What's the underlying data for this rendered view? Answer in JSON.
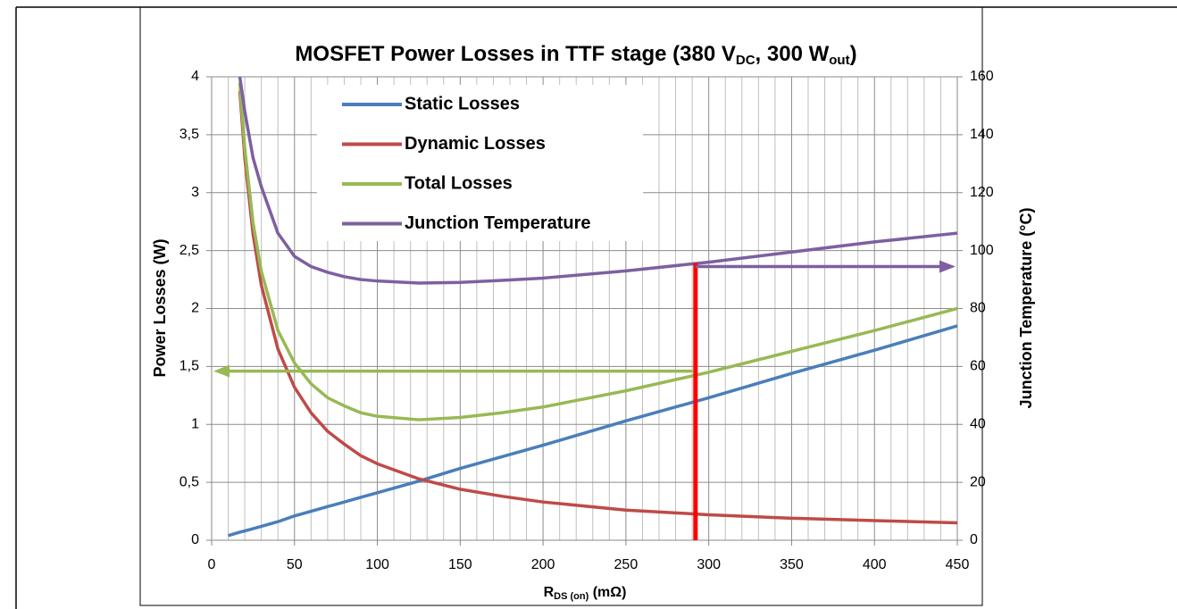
{
  "chart_data": {
    "type": "line",
    "title": [
      "MOSFET Power Losses in TTF stage (380 V",
      "DC",
      ", 300 W",
      "out",
      ")"
    ],
    "x_label": [
      "R",
      "DS (on)",
      " (mΩ)"
    ],
    "y_label": "Power Losses (W)",
    "y2_label": "Junction Temperature (°C)",
    "x": [
      10,
      17,
      20,
      25,
      30,
      40,
      50,
      60,
      70,
      80,
      90,
      100,
      125,
      150,
      175,
      200,
      250,
      300,
      350,
      400,
      450
    ],
    "series": [
      {
        "name": "Static Losses",
        "color": "#4a7ebb",
        "values": [
          0.04,
          0.07,
          0.08,
          0.1,
          0.12,
          0.16,
          0.21,
          0.25,
          0.29,
          0.33,
          0.37,
          0.41,
          0.51,
          0.62,
          0.72,
          0.82,
          1.03,
          1.23,
          1.44,
          1.64,
          1.85
        ]
      },
      {
        "name": "Dynamic Losses",
        "color": "#be4b48",
        "values": [
          null,
          3.88,
          3.3,
          2.64,
          2.2,
          1.65,
          1.32,
          1.1,
          0.94,
          0.83,
          0.73,
          0.66,
          0.53,
          0.44,
          0.38,
          0.33,
          0.26,
          0.22,
          0.19,
          0.17,
          0.15
        ]
      },
      {
        "name": "Total Losses",
        "color": "#98b954",
        "values": [
          null,
          3.95,
          3.38,
          2.74,
          2.32,
          1.81,
          1.53,
          1.35,
          1.23,
          1.16,
          1.1,
          1.07,
          1.04,
          1.06,
          1.1,
          1.15,
          1.29,
          1.45,
          1.63,
          1.81,
          2.0
        ]
      },
      {
        "name": "Junction Temperature",
        "color": "#7d60a0",
        "axis": "y2",
        "values": [
          null,
          160,
          148,
          132,
          122,
          106,
          98,
          94.5,
          92.5,
          91,
          90,
          89.5,
          88.8,
          89,
          89.7,
          90.5,
          93,
          96,
          99.5,
          103,
          106
        ]
      }
    ],
    "xlim": [
      0,
      450
    ],
    "xticks": [
      0,
      50,
      100,
      150,
      200,
      250,
      300,
      350,
      400,
      450
    ],
    "xminorticks": [
      10,
      20,
      30,
      40,
      60,
      70,
      80,
      90,
      110,
      120,
      130,
      140,
      160,
      170,
      180,
      190,
      210,
      220,
      230,
      240,
      260,
      270,
      280,
      290,
      310,
      320,
      330,
      340,
      360,
      370,
      380,
      390,
      410,
      420,
      430,
      440
    ],
    "ylim": [
      0,
      4
    ],
    "yticks": [
      0,
      {
        "value": 0.5,
        "label": "0,5"
      },
      1,
      {
        "value": 1.5,
        "label": "1,5"
      },
      2,
      {
        "value": 2.5,
        "label": "2,5"
      },
      3,
      {
        "value": 3.5,
        "label": "3,5"
      },
      4
    ],
    "y2lim": [
      0,
      160
    ],
    "y2ticks": [
      0,
      20,
      40,
      60,
      80,
      100,
      120,
      140,
      160
    ],
    "grid": true,
    "legend": "upper left",
    "annotation": {
      "rds": 292,
      "power": 1.46,
      "temperature": 94.5,
      "line_color": "#ff0000"
    }
  }
}
